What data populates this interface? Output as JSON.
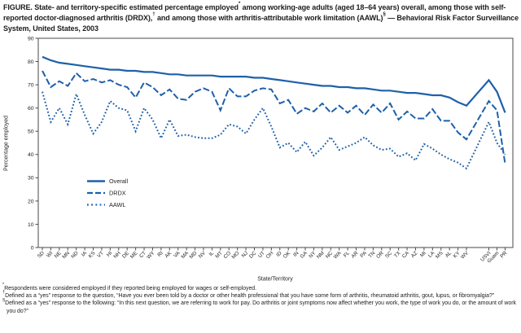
{
  "figure": {
    "title_segments": [
      {
        "text": "FIGURE. State- and territory-specific estimated percentage employed",
        "sup": false
      },
      {
        "text": "*",
        "sup": true
      },
      {
        "text": " among working-age adults (aged 18–64 years) overall, among those with self-reported doctor-diagnosed arthritis (DRDX),",
        "sup": false
      },
      {
        "text": "†",
        "sup": true
      },
      {
        "text": " and among those with arthritis-attributable work limitation (AAWL)",
        "sup": false
      },
      {
        "text": "§",
        "sup": true
      },
      {
        "text": " — Behavioral Risk Factor Surveillance System, United States, 2003",
        "sup": false
      }
    ]
  },
  "chart_data": {
    "type": "line",
    "title": "",
    "xlabel": "State/Territory",
    "ylabel": "Percentage employed",
    "ylim": [
      0,
      90
    ],
    "yticks": [
      0,
      10,
      20,
      30,
      40,
      50,
      60,
      70,
      80,
      90
    ],
    "grid": false,
    "legend_position": "inside-lower-left",
    "line_color": "#1f60aa",
    "frame_color": "#4a4a4a",
    "text_color": "#222222",
    "categories": [
      "SD",
      "WI",
      "NE",
      "MN",
      "ND",
      "IA",
      "KS",
      "VT",
      "HI",
      "NH",
      "DE",
      "ME",
      "CT",
      "WY",
      "RI",
      "AK",
      "VA",
      "MA",
      "MD",
      "NV",
      "IL",
      "MT",
      "CO",
      "MO",
      "NJ",
      "DC",
      "UT",
      "OH",
      "ID",
      "OK",
      "IN",
      "GA",
      "NY",
      "NM",
      "NC",
      "WA",
      "FL",
      "AR",
      "PA",
      "TN",
      "OR",
      "SC",
      "TX",
      "CA",
      "AZ",
      "MI",
      "LA",
      "MS",
      "AL",
      "KY",
      "WV",
      "USVI",
      "Guam",
      "PR"
    ],
    "gap_after": "WV",
    "series": [
      {
        "name": "Overall",
        "style": "solid",
        "values": [
          82,
          80.5,
          79.5,
          79,
          78.5,
          78,
          77.5,
          77,
          76.5,
          76.5,
          76,
          76,
          75.5,
          75.5,
          75,
          74.5,
          74.5,
          74,
          74,
          74,
          74,
          73.5,
          73.5,
          73.5,
          73.5,
          73,
          73,
          72.5,
          72,
          71.5,
          71,
          70.5,
          70,
          69.5,
          69.5,
          69,
          69,
          68.5,
          68.5,
          68,
          67.5,
          67.5,
          67,
          66.5,
          66.5,
          66,
          65.5,
          65.5,
          64.5,
          62.5,
          61,
          72,
          67,
          58
        ]
      },
      {
        "name": "DRDX",
        "style": "dashed",
        "values": [
          76,
          69,
          71.5,
          69.5,
          75,
          71.5,
          72.5,
          71,
          72,
          70,
          69,
          64.5,
          71,
          69,
          65.5,
          68,
          64,
          63.5,
          67,
          68.5,
          67,
          59,
          68.5,
          65,
          65,
          67.5,
          68.5,
          68,
          62,
          63.5,
          57.5,
          60,
          58.5,
          62,
          58,
          61,
          58,
          61,
          57,
          61.5,
          58,
          62,
          55,
          58.5,
          55.5,
          55.5,
          59.5,
          54.5,
          54.5,
          49.5,
          46.5,
          63,
          59,
          36
        ]
      },
      {
        "name": "AAWL",
        "style": "dotted",
        "values": [
          67,
          54,
          60,
          53,
          66,
          57,
          49,
          54,
          63,
          60,
          59,
          50,
          60,
          55,
          47,
          55,
          48,
          48.5,
          47.5,
          47,
          47,
          48.5,
          53,
          52,
          49,
          55,
          60,
          52,
          43,
          45,
          41,
          45.5,
          39.5,
          43,
          47.5,
          42,
          43.5,
          45,
          47.5,
          44,
          42,
          42.5,
          39,
          40.5,
          37.5,
          44.5,
          42.5,
          40,
          38,
          36.5,
          34,
          54,
          45,
          40
        ]
      }
    ]
  },
  "footnotes": [
    {
      "symbol": "*",
      "text": "Respondents were considered employed if they reported being employed for wages or self-employed."
    },
    {
      "symbol": "†",
      "text": "Defined as a “yes” response to the question, “Have you ever been told by a doctor or other health professional that you have some form of arthritis, rheumatoid arthritis, gout, lupus, or fibromyalgia?”"
    },
    {
      "symbol": "§",
      "text": "Defined as a “yes” response to the following: “In this next question, we are referring to work for pay. Do arthritis or joint symptoms now affect whether you work, the type of work you do, or the amount of work you do?”"
    }
  ]
}
